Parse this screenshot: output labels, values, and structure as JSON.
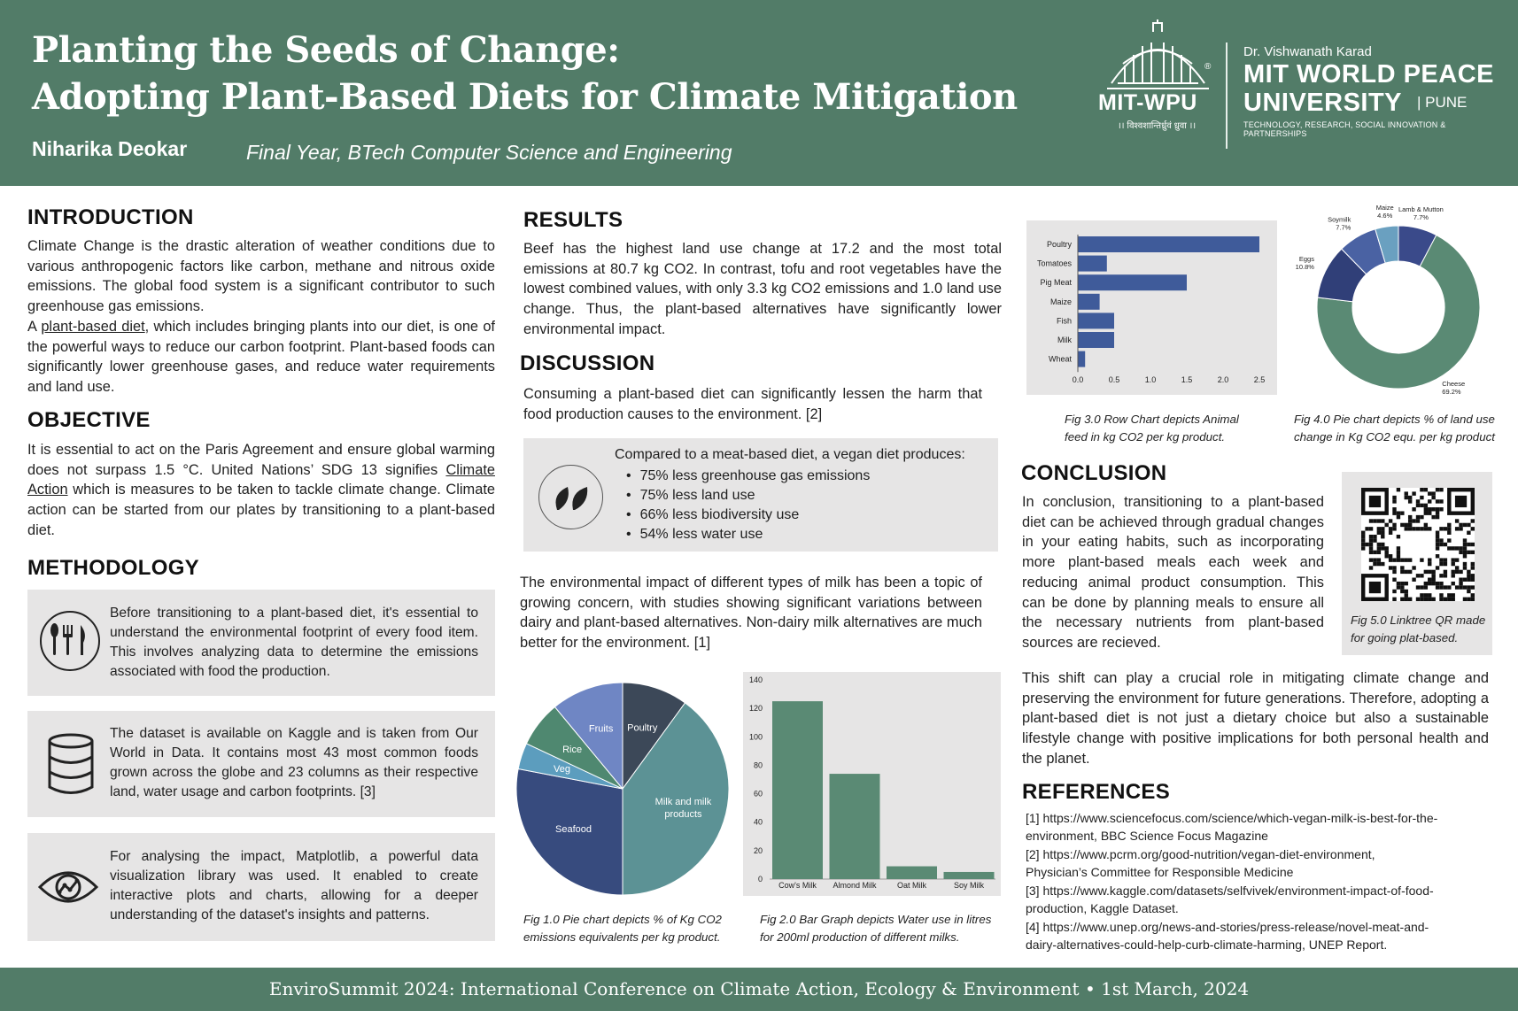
{
  "header": {
    "title_line1": "Planting the Seeds of Change:",
    "title_line2": "Adopting Plant-Based Diets for Climate Mitigation",
    "author": "Niharika Deokar",
    "affiliation": "Final Year, BTech Computer Science and Engineering",
    "logo": {
      "short": "MIT-WPU",
      "registered": "®",
      "motto": "।। विश्वशान्तिर्ध्रुवं ध्रुवा ।।",
      "founder": "Dr. Vishwanath Karad",
      "name_line1": "MIT WORLD PEACE",
      "name_line2": "UNIVERSITY",
      "city": "| PUNE",
      "tagline": "TECHNOLOGY, RESEARCH, SOCIAL INNOVATION & PARTNERSHIPS"
    }
  },
  "introduction": {
    "heading": "INTRODUCTION",
    "p1": "Climate Change is the drastic alteration of weather conditions due to various anthropogenic factors like carbon, methane and nitrous oxide emissions. The global food system is a significant contributor to such greenhouse gas emissions.",
    "p2_pre": "A ",
    "p2_link": "plant-based diet",
    "p2_post": ", which includes bringing plants into our diet, is one of the powerful ways to reduce our carbon footprint. Plant-based foods can significantly lower greenhouse gases, and reduce water requirements and land use."
  },
  "objective": {
    "heading": "OBJECTIVE",
    "pre": "It is essential to act on the Paris Agreement and ensure global warming does not surpass 1.5 °C. United Nations’ SDG 13 signifies ",
    "link": "Climate Action",
    "post": " which is measures to be taken to tackle climate change. Climate action can be started from our plates by transitioning to a plant-based diet."
  },
  "methodology": {
    "heading": "METHODOLOGY",
    "box1": "Before transitioning to a plant-based diet, it's essential to understand the environmental footprint of every food item. This involves analyzing data to determine the emissions associated with food the production.",
    "box2": "The dataset is available on Kaggle and is taken from Our World in Data. It contains most 43 most common foods grown across the globe and 23 columns as their respective land, water usage and carbon footprints. [3]",
    "box3": "For analysing the impact, Matplotlib, a powerful data visualization library was used. It enabled to create interactive plots and charts, allowing for a deeper understanding of the dataset's insights and patterns.",
    "icon1": "cutlery-icon",
    "icon2": "database-icon",
    "icon3": "analytics-eye-icon"
  },
  "results": {
    "heading": "RESULTS",
    "text": "Beef has the highest land use change at 17.2 and the most total emissions at 80.7 kg CO2. In contrast, tofu and root vegetables have the lowest combined values, with only 3.3 kg CO2 emissions and 1.0 land use change.  Thus, the plant-based alternatives have significantly lower environmental impact."
  },
  "discussion": {
    "heading": "DISCUSSION",
    "text": "Consuming a plant-based diet can significantly lessen the harm that food production causes to the environment. [2]",
    "box_title": "Compared to a meat-based diet, a vegan diet produces:",
    "bullets": [
      "75% less greenhouse gas emissions",
      "75% less land use",
      "66% less biodiversity use",
      "54% less water use"
    ],
    "box_icon": "leaves-icon",
    "milk_text": "The environmental impact of different types of milk has been a topic of growing concern, with studies showing significant variations between dairy and plant-based alternatives. Non-dairy milk alternatives are much better for the environment. [1]"
  },
  "figures": {
    "fig1_caption1": "Fig 1.0 Pie chart depicts % of Kg CO2",
    "fig1_caption2": "emissions equivalents per kg product.",
    "fig2_caption1": "Fig 2.0 Bar Graph depicts Water use in litres",
    "fig2_caption2": "for 200ml production of different milks.",
    "fig3_caption1": "Fig 3.0 Row Chart depicts Animal",
    "fig3_caption2": "feed in kg CO2 per kg product.",
    "fig4_caption1": "Fig 4.0 Pie chart depicts % of land use",
    "fig4_caption2": "change in Kg CO2 equ. per kg product",
    "fig5_caption1": "Fig 5.0 Linktree QR made",
    "fig5_caption2": "for going plat-based."
  },
  "conclusion": {
    "heading": "CONCLUSION",
    "p1": "In conclusion, transitioning to a plant-based diet can be achieved through gradual changes in your eating habits, such as incorporating more plant-based meals each week and reducing animal product consumption. This can be done by planning meals to ensure all the necessary nutrients from plant-based sources are recieved.",
    "p2": "This shift can play a crucial role in mitigating climate change and preserving the environment for future generations. Therefore, adopting a plant-based diet is not just a dietary choice but also a sustainable lifestyle change with positive implications for both personal health and the planet."
  },
  "references": {
    "heading": "REFERENCES",
    "r1a": "[1] https://www.sciencefocus.com/science/which-vegan-milk-is-best-for-the-",
    "r1b": "environment, BBC Science Focus Magazine",
    "r2a": "[2] https://www.pcrm.org/good-nutrition/vegan-diet-environment,",
    "r2b": "Physician’s Committee for Responsible Medicine",
    "r3a": "[3] https://www.kaggle.com/datasets/selfvivek/environment-impact-of-food-",
    "r3b": "production, Kaggle Dataset.",
    "r4a": "[4] https://www.unep.org/news-and-stories/press-release/novel-meat-and-",
    "r4b": "dairy-alternatives-could-help-curb-climate-harming, UNEP Report."
  },
  "footer": "EnviroSummit 2024: International Conference on Climate Action, Ecology & Environment • 1st March, 2024",
  "colors": {
    "primary": "#527c68",
    "box_grey": "#e6e5e5",
    "bar_green": "#5a8a74",
    "bar_blue": "#3f5b9a"
  },
  "chart_data": [
    {
      "type": "pie",
      "slices": [
        {
          "label": "Poultry",
          "value": 10,
          "color": "#3c4858"
        },
        {
          "label": "Milk and milk products",
          "value": 40,
          "color": "#5c9295"
        },
        {
          "label": "Seafood",
          "value": 28,
          "color": "#374b7e"
        },
        {
          "label": "Veg",
          "value": 4,
          "color": "#5c9dbe"
        },
        {
          "label": "Rice",
          "value": 7,
          "color": "#4f8870"
        },
        {
          "label": "Fruits",
          "value": 11,
          "color": "#6f86c4"
        }
      ]
    },
    {
      "type": "bar",
      "categories": [
        "Cow's Milk",
        "Almond Milk",
        "Oat Milk",
        "Soy Milk"
      ],
      "values": [
        125,
        74,
        9,
        5
      ],
      "ylim": [
        0,
        140
      ],
      "yticks": [
        0,
        20,
        40,
        60,
        80,
        100,
        120,
        140
      ]
    },
    {
      "type": "bar",
      "orientation": "horizontal",
      "categories": [
        "Poultry",
        "Tomatoes",
        "Pig Meat",
        "Maize",
        "Fish",
        "Milk",
        "Wheat"
      ],
      "values": [
        2.5,
        0.4,
        1.5,
        0.3,
        0.5,
        0.5,
        0.1
      ],
      "xlim": [
        0,
        2.5
      ],
      "xticks": [
        "0.0",
        "0.5",
        "1.0",
        "1.5",
        "2.0",
        "2.5"
      ]
    },
    {
      "type": "pie",
      "donut": true,
      "slices": [
        {
          "label": "Lamb & Mutton",
          "pct": "7.7%",
          "value": 7.7,
          "color": "#3a4a8a"
        },
        {
          "label": "Cheese",
          "pct": "69.2%",
          "value": 69.2,
          "color": "#5a8a74"
        },
        {
          "label": "Eggs",
          "pct": "10.8%",
          "value": 10.8,
          "color": "#303f78"
        },
        {
          "label": "Soymilk",
          "pct": "7.7%",
          "value": 7.7,
          "color": "#4a62a3"
        },
        {
          "label": "Maize",
          "pct": "4.6%",
          "value": 4.6,
          "color": "#6aa0c0"
        }
      ]
    }
  ]
}
